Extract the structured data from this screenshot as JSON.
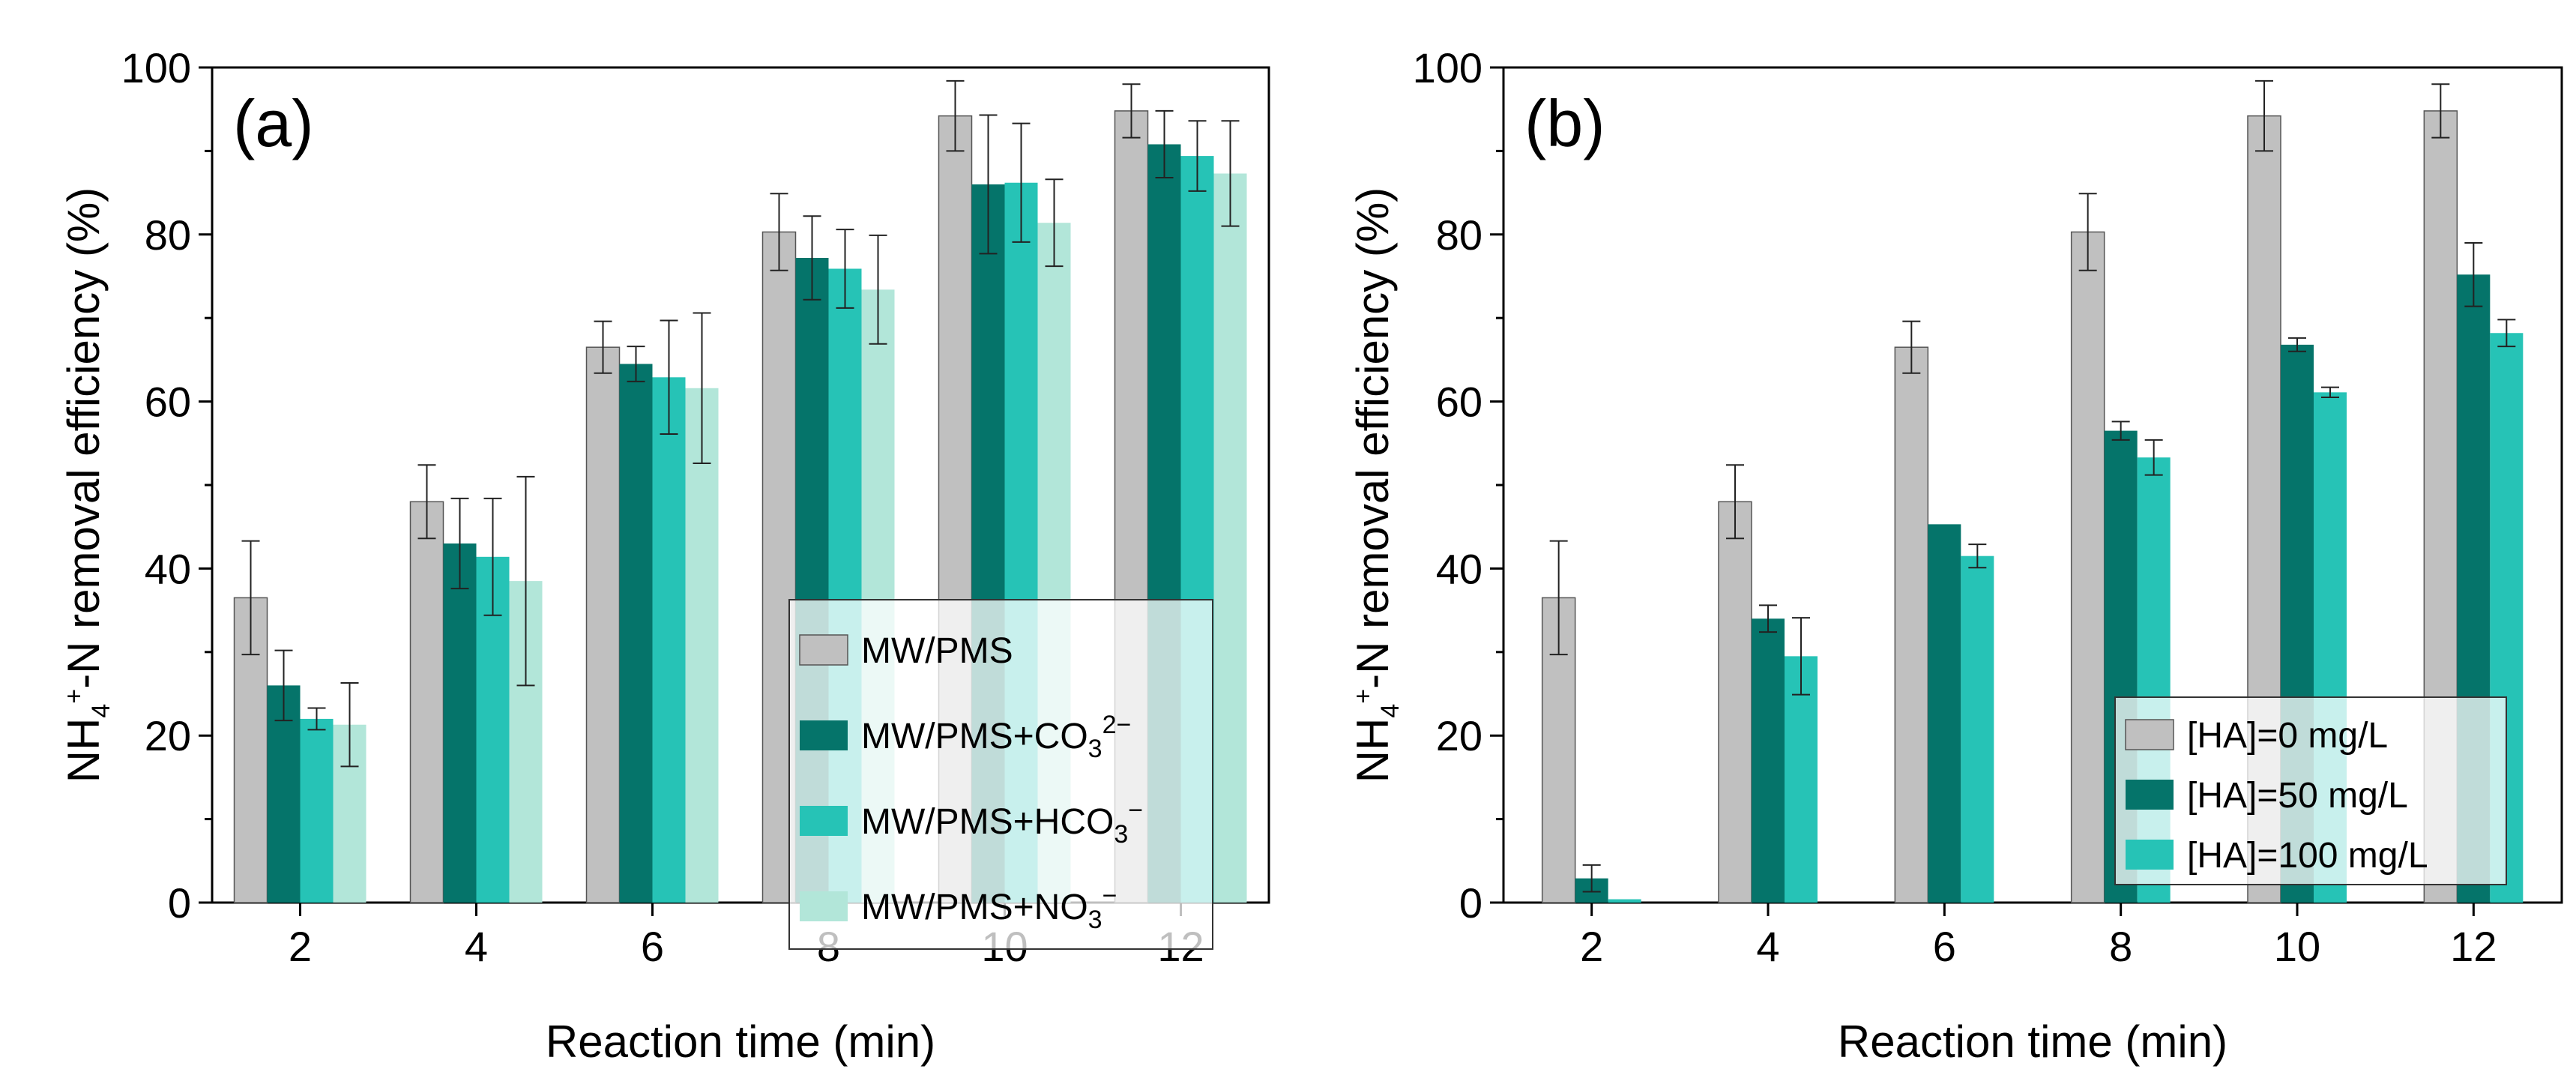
{
  "chart_data": [
    {
      "type": "bar",
      "panel_label": "(a)",
      "categories": [
        "2",
        "4",
        "6",
        "8",
        "10",
        "12"
      ],
      "xlabel": "Reaction time (min)",
      "ylabel": {
        "base": "NH",
        "sub": "4",
        "sup": "+",
        "rest": "-N removal efficiency (%)"
      },
      "ylim": [
        0,
        100
      ],
      "yticks": [
        "0",
        "20",
        "40",
        "60",
        "80",
        "100"
      ],
      "legend_position": "bottom-right",
      "series": [
        {
          "name": "MW/PMS",
          "legend": {
            "base": "MW/PMS",
            "sub": "",
            "sup": ""
          },
          "color": "#c0c0c0",
          "values": [
            36.5,
            48.0,
            66.5,
            80.3,
            94.2,
            94.8
          ],
          "errors": [
            6.8,
            4.4,
            3.1,
            4.6,
            4.2,
            3.2
          ]
        },
        {
          "name": "MW/PMS+CO3 2-",
          "legend": {
            "base": "MW/PMS+CO",
            "sub": "3",
            "sup": "2−"
          },
          "color": "#05746a",
          "values": [
            26.0,
            43.0,
            64.5,
            77.2,
            86.0,
            90.8
          ],
          "errors": [
            4.2,
            5.4,
            2.1,
            5.0,
            8.3,
            4.0
          ]
        },
        {
          "name": "MW/PMS+HCO3 -",
          "legend": {
            "base": "MW/PMS+HCO",
            "sub": "3",
            "sup": "−"
          },
          "color": "#26c3b6",
          "values": [
            22.0,
            41.4,
            62.9,
            75.9,
            86.2,
            89.4
          ],
          "errors": [
            1.3,
            7.0,
            6.8,
            4.7,
            7.1,
            4.2
          ]
        },
        {
          "name": "MW/PMS+NO3 -",
          "legend": {
            "base": "MW/PMS+NO",
            "sub": "3",
            "sup": "−"
          },
          "color": "#b2e6d9",
          "values": [
            21.3,
            38.5,
            61.6,
            73.4,
            81.4,
            87.3
          ],
          "errors": [
            5.0,
            12.5,
            9.0,
            6.5,
            5.2,
            6.3
          ]
        }
      ]
    },
    {
      "type": "bar",
      "panel_label": "(b)",
      "categories": [
        "2",
        "4",
        "6",
        "8",
        "10",
        "12"
      ],
      "xlabel": "Reaction time (min)",
      "ylabel": {
        "base": "NH",
        "sub": "4",
        "sup": "+",
        "rest": "-N removal efficiency (%)"
      },
      "ylim": [
        0,
        100
      ],
      "yticks": [
        "0",
        "20",
        "40",
        "60",
        "80",
        "100"
      ],
      "legend_position": "bottom-right",
      "series": [
        {
          "name": "[HA]=0 mg/L",
          "legend": {
            "base": "[HA]=0 mg/L",
            "sub": "",
            "sup": ""
          },
          "color": "#c0c0c0",
          "values": [
            36.5,
            48.0,
            66.5,
            80.3,
            94.2,
            94.8
          ],
          "errors": [
            6.8,
            4.4,
            3.1,
            4.6,
            4.2,
            3.2
          ]
        },
        {
          "name": "[HA]=50 mg/L",
          "legend": {
            "base": "[HA]=50 mg/L",
            "sub": "",
            "sup": ""
          },
          "color": "#05746a",
          "values": [
            2.9,
            34.0,
            45.3,
            56.5,
            66.8,
            75.2
          ],
          "errors": [
            1.6,
            1.6,
            0.0,
            1.1,
            0.8,
            3.8
          ]
        },
        {
          "name": "[HA]=100 mg/L",
          "legend": {
            "base": "[HA]=100 mg/L",
            "sub": "",
            "sup": ""
          },
          "color": "#26c3b6",
          "values": [
            0.4,
            29.5,
            41.5,
            53.3,
            61.1,
            68.2
          ],
          "errors": [
            0.0,
            4.6,
            1.4,
            2.1,
            0.6,
            1.6
          ]
        }
      ]
    }
  ]
}
